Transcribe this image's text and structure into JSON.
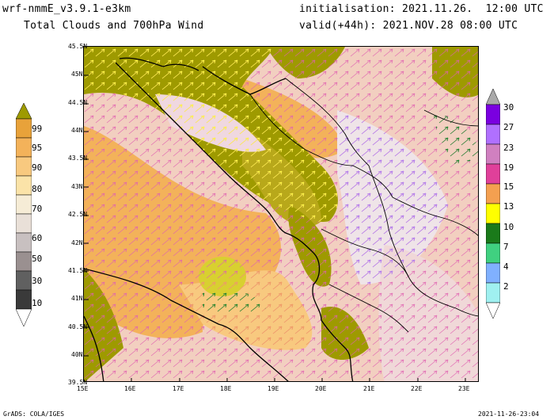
{
  "header": {
    "model": "wrf-nmmE_v3.9.1-e3km",
    "product": "Total Clouds and 700hPa Wind",
    "init": "initialisation: 2021.11.26.  12:00 UTC",
    "valid": "valid(+44h): 2021.NOV.28 08:00 UTC"
  },
  "footer": {
    "left": "GrADS: COLA/IGES",
    "right": "2021-11-26-23:04"
  },
  "map": {
    "lat_labels": [
      "45.5N",
      "45N",
      "44.5N",
      "44N",
      "43.5N",
      "43N",
      "42.5N",
      "42N",
      "41.5N",
      "41N",
      "40.5N",
      "40N",
      "39.5N"
    ],
    "lon_labels": [
      "15E",
      "16E",
      "17E",
      "18E",
      "19E",
      "20E",
      "21E",
      "22E",
      "23E"
    ],
    "lat_range": [
      39.5,
      45.5
    ],
    "lon_range": [
      15,
      23.3
    ]
  },
  "clouds_scale": {
    "levels": [
      "99",
      "95",
      "90",
      "80",
      "70",
      "60",
      "50",
      "30",
      "10"
    ],
    "colors": [
      "#9e9a00",
      "#e8a23a",
      "#f3b25a",
      "#f8c97f",
      "#fbe3a8",
      "#e9e0d8",
      "#c8c0c0",
      "#9a9090",
      "#606060",
      "#3a3a3a"
    ]
  },
  "wind_scale": {
    "levels": [
      "30",
      "27",
      "23",
      "19",
      "15",
      "13",
      "10",
      "7",
      "4",
      "2"
    ],
    "colors": [
      "#aaaaaa",
      "#7a00e0",
      "#b070ff",
      "#e0409a",
      "#f4a050",
      "#ffff00",
      "#1a7a1a",
      "#40d080",
      "#80b0ff",
      "#a0f0f0",
      "#ffffff"
    ]
  }
}
